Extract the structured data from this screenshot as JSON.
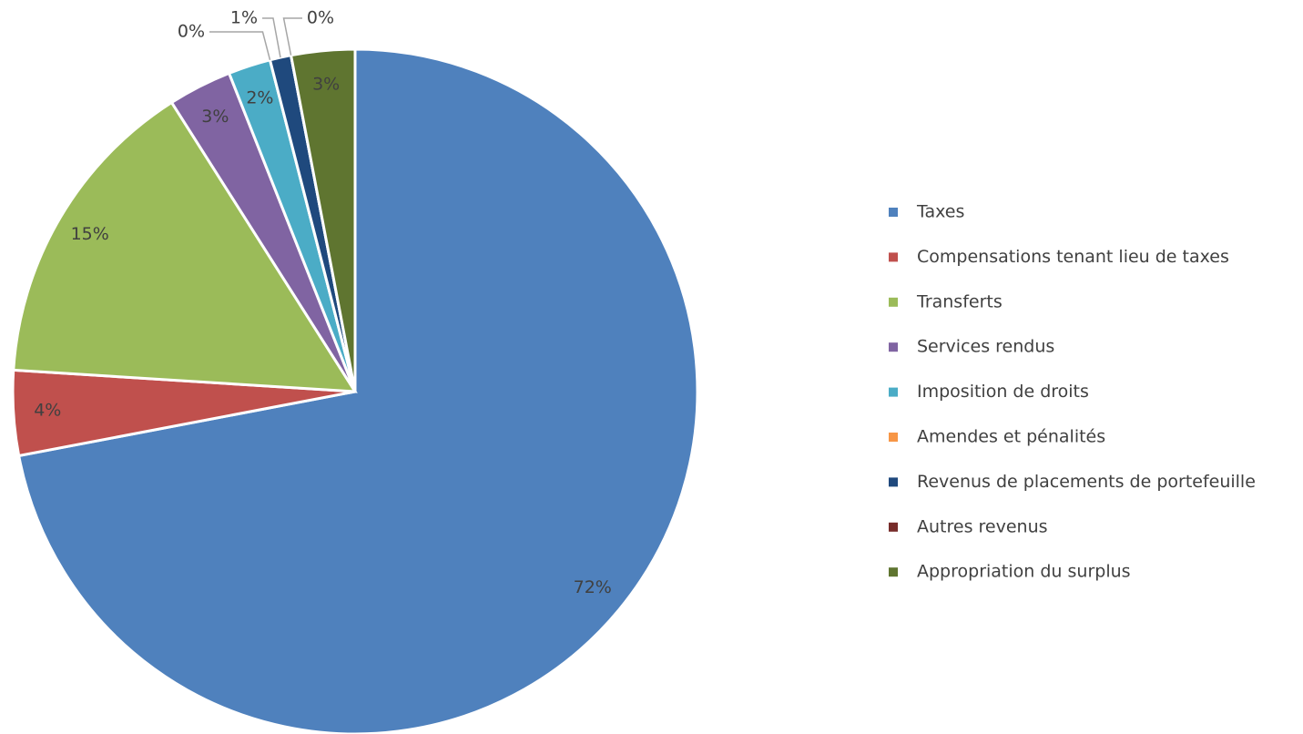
{
  "chart_data": {
    "type": "pie",
    "categories": [
      "Taxes",
      "Compensations tenant lieu de taxes",
      "Transferts",
      "Services rendus",
      "Imposition de droits",
      "Amendes et pénalités",
      "Revenus de placements de portefeuille",
      "Autres revenus",
      "Appropriation du surplus"
    ],
    "values": [
      72,
      4,
      15,
      3,
      2,
      0,
      1,
      0,
      3
    ],
    "colors": [
      "#4f81bd",
      "#c0504d",
      "#9bbb59",
      "#8064a2",
      "#4bacc6",
      "#f79646",
      "#1f497d",
      "#772c2a",
      "#5f7530"
    ],
    "value_labels": [
      "72%",
      "4%",
      "15%",
      "3%",
      "2%",
      "0%",
      "1%",
      "0%",
      "3%"
    ],
    "legend": "right"
  }
}
